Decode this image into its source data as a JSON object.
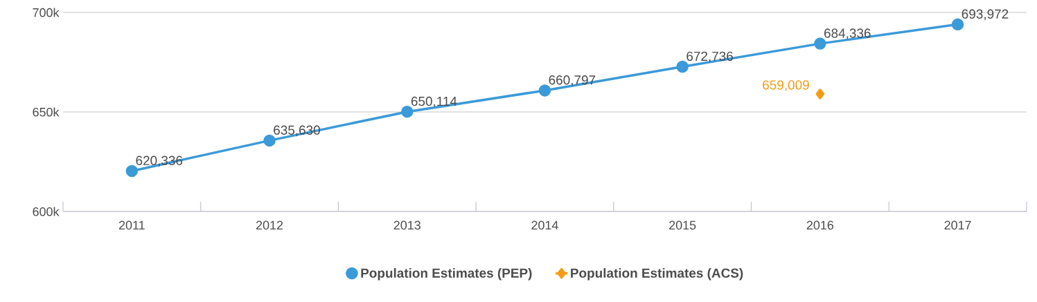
{
  "chart_data": {
    "type": "line",
    "categories": [
      "2011",
      "2012",
      "2013",
      "2014",
      "2015",
      "2016",
      "2017"
    ],
    "ylim": [
      600000,
      700000
    ],
    "yticks": [
      {
        "value": 600000,
        "label": "600k"
      },
      {
        "value": 650000,
        "label": "650k"
      },
      {
        "value": 700000,
        "label": "700k"
      }
    ],
    "grid": "y",
    "legend": "bottom",
    "series": [
      {
        "name": "Population Estimates (PEP)",
        "color": "#3b9ad9",
        "marker": "circle",
        "values": [
          620336,
          635630,
          650114,
          660797,
          672736,
          684336,
          693972
        ],
        "value_labels": [
          "620,336",
          "635,630",
          "650,114",
          "660,797",
          "672,736",
          "684,336",
          "693,972"
        ]
      },
      {
        "name": "Population Estimates (ACS)",
        "color": "#f39c12",
        "marker": "diamond",
        "values": [
          null,
          null,
          null,
          null,
          null,
          659009,
          null
        ],
        "value_labels": [
          null,
          null,
          null,
          null,
          null,
          "659,009",
          null
        ]
      }
    ]
  }
}
